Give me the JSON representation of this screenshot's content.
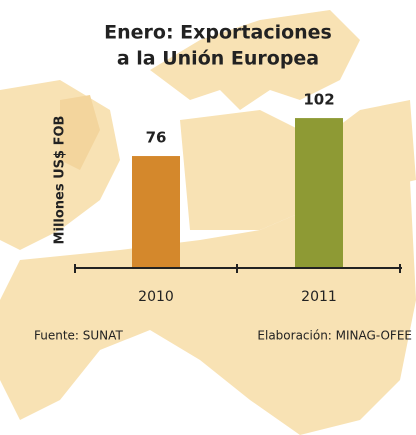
{
  "chart_data": {
    "type": "bar",
    "title": [
      "Enero: Exportaciones",
      "a la Unión Europea"
    ],
    "y_label": "Millones US$ FOB",
    "categories": [
      "2010",
      "2011"
    ],
    "series": [
      {
        "name": null,
        "values": [
          76,
          102
        ],
        "colors": [
          "#d4882c",
          "#8e9a34"
        ]
      }
    ],
    "source": "Fuente: SUNAT",
    "credit": "Elaboración: MINAG-OFEE"
  }
}
